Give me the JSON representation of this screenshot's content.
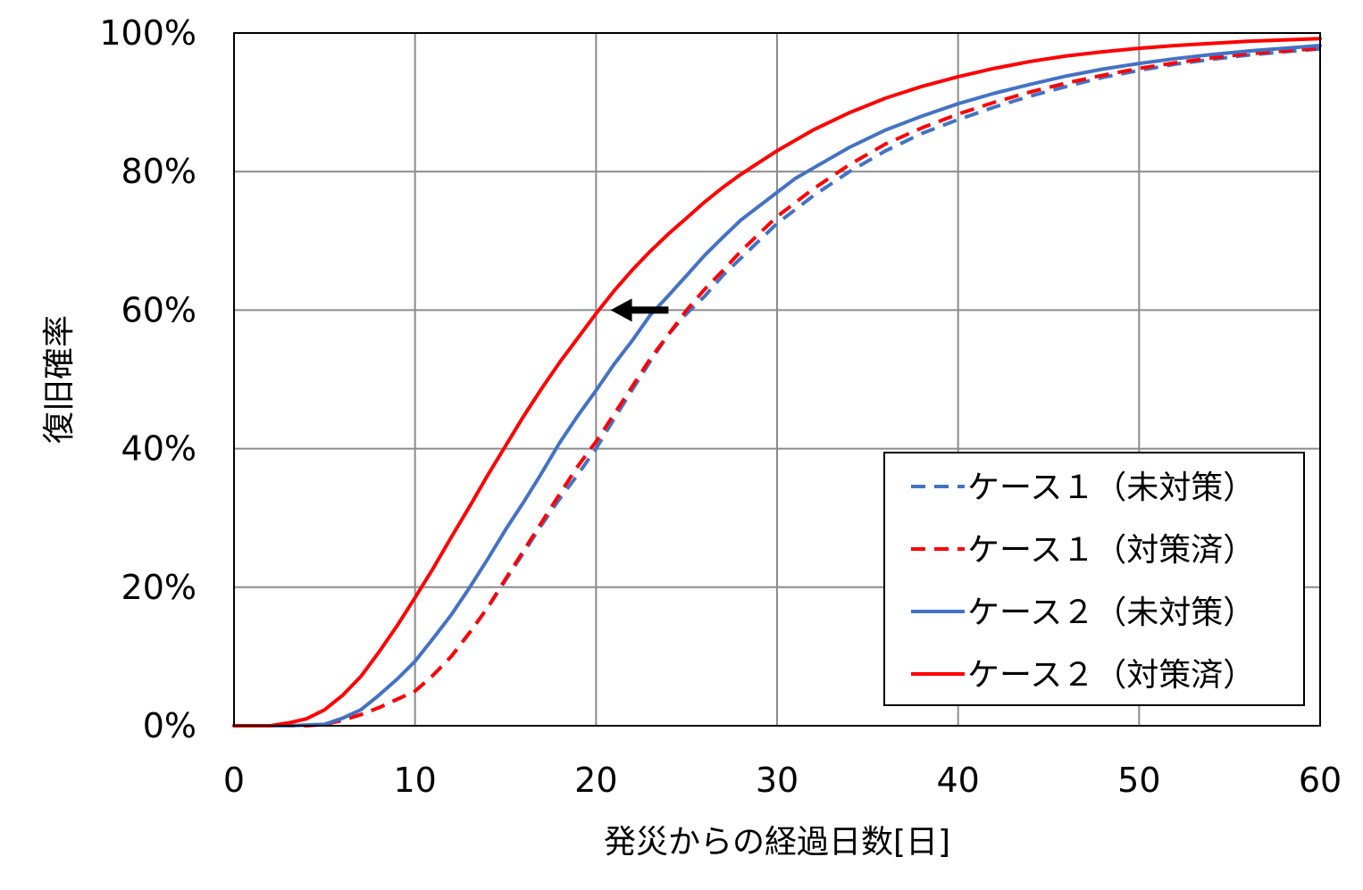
{
  "chart_data": {
    "type": "line",
    "title": "",
    "xlabel": "発災からの経過日数[日]",
    "ylabel": "復旧確率",
    "xlim": [
      0,
      60
    ],
    "ylim": [
      0,
      100
    ],
    "x_ticks": [
      0,
      10,
      20,
      30,
      40,
      50,
      60
    ],
    "x_tick_labels": [
      "0",
      "10",
      "20",
      "30",
      "40",
      "50",
      "60"
    ],
    "y_ticks": [
      0,
      20,
      40,
      60,
      80,
      100
    ],
    "y_tick_labels": [
      "0%",
      "20%",
      "40%",
      "60%",
      "80%",
      "100%"
    ],
    "grid": true,
    "legend_position": "bottom-right",
    "series": [
      {
        "name": "ケース１（未対策）",
        "color": "#4472C4",
        "style": "dashed",
        "x": [
          0,
          2,
          4,
          5,
          6,
          7,
          8,
          9,
          10,
          11,
          12,
          13,
          14,
          15,
          16,
          17,
          18,
          19,
          20,
          21,
          22,
          23,
          24,
          25,
          26,
          27,
          28,
          29,
          30,
          32,
          34,
          36,
          38,
          40,
          42,
          44,
          46,
          48,
          50,
          52,
          54,
          56,
          58,
          60
        ],
        "y": [
          0,
          0,
          0,
          0.2,
          0.8,
          1.6,
          2.6,
          3.8,
          5,
          7.3,
          10,
          13.4,
          17,
          21,
          25,
          29,
          32.8,
          36.3,
          40,
          44.3,
          48.5,
          52.6,
          56.5,
          59.5,
          62,
          65,
          67.5,
          70,
          72.5,
          76.5,
          80,
          83,
          85.5,
          87.5,
          89.3,
          90.9,
          92.3,
          93.6,
          94.6,
          95.5,
          96.2,
          96.8,
          97.3,
          97.7
        ]
      },
      {
        "name": "ケース１（対策済）",
        "color": "#FF0000",
        "style": "dashed",
        "x": [
          0,
          2,
          4,
          5,
          6,
          7,
          8,
          9,
          10,
          11,
          12,
          13,
          14,
          15,
          16,
          17,
          18,
          19,
          20,
          21,
          22,
          23,
          24,
          25,
          26,
          27,
          28,
          29,
          30,
          32,
          34,
          36,
          38,
          40,
          42,
          44,
          46,
          48,
          50,
          52,
          54,
          56,
          58,
          60
        ],
        "y": [
          0,
          0,
          0,
          0.2,
          0.8,
          1.6,
          2.6,
          3.8,
          5,
          7.3,
          10,
          13.4,
          17,
          21.2,
          25.3,
          29.4,
          33.5,
          37.5,
          41,
          45,
          49,
          53,
          56.5,
          60,
          63,
          65.7,
          68.5,
          71,
          73.5,
          77.5,
          81,
          84,
          86.3,
          88.3,
          90,
          91.5,
          92.8,
          93.9,
          94.9,
          95.7,
          96.4,
          97,
          97.4,
          97.8
        ]
      },
      {
        "name": "ケース２（未対策）",
        "color": "#4472C4",
        "style": "solid",
        "x": [
          0,
          3,
          5,
          6,
          7,
          8,
          9,
          10,
          11,
          12,
          13,
          14,
          15,
          16,
          17,
          18,
          19,
          20,
          21,
          22,
          23,
          24,
          25,
          26,
          27,
          28,
          29,
          30,
          31,
          32,
          34,
          36,
          38,
          40,
          42,
          44,
          46,
          48,
          50,
          52,
          54,
          56,
          58,
          60
        ],
        "y": [
          0,
          0,
          0.2,
          1.1,
          2.3,
          4.4,
          6.7,
          9.3,
          12.6,
          16,
          19.9,
          24,
          28.3,
          32.3,
          36.5,
          40.9,
          44.8,
          48.4,
          52.2,
          55.6,
          59.3,
          62.1,
          65,
          67.9,
          70.5,
          73,
          75,
          77,
          79,
          80.5,
          83.5,
          86,
          88,
          89.8,
          91.3,
          92.6,
          93.8,
          94.8,
          95.6,
          96.3,
          96.9,
          97.4,
          97.8,
          98.2
        ]
      },
      {
        "name": "ケース２（対策済）",
        "color": "#FF0000",
        "style": "solid",
        "x": [
          0,
          2,
          3,
          4,
          5,
          6,
          7,
          8,
          9,
          10,
          11,
          12,
          13,
          14,
          15,
          16,
          17,
          18,
          19,
          20,
          21,
          22,
          23,
          24,
          25,
          26,
          27,
          28,
          29,
          30,
          32,
          34,
          36,
          38,
          40,
          42,
          44,
          46,
          48,
          50,
          52,
          54,
          56,
          58,
          60
        ],
        "y": [
          0,
          0,
          0.4,
          1,
          2.3,
          4.4,
          7.1,
          10.6,
          14.4,
          18.5,
          22.7,
          27.2,
          31.6,
          36.1,
          40.4,
          44.7,
          48.7,
          52.5,
          56,
          59.5,
          62.8,
          65.8,
          68.5,
          71,
          73.3,
          75.6,
          77.7,
          79.6,
          81.3,
          83,
          86,
          88.5,
          90.6,
          92.3,
          93.7,
          94.9,
          95.9,
          96.7,
          97.3,
          97.8,
          98.2,
          98.5,
          98.8,
          99.0,
          99.2
        ]
      }
    ],
    "annotations": [
      {
        "type": "arrow",
        "color": "#000000",
        "from": {
          "x": 24,
          "y": 60
        },
        "to": {
          "x": 20.8,
          "y": 60
        }
      }
    ]
  }
}
